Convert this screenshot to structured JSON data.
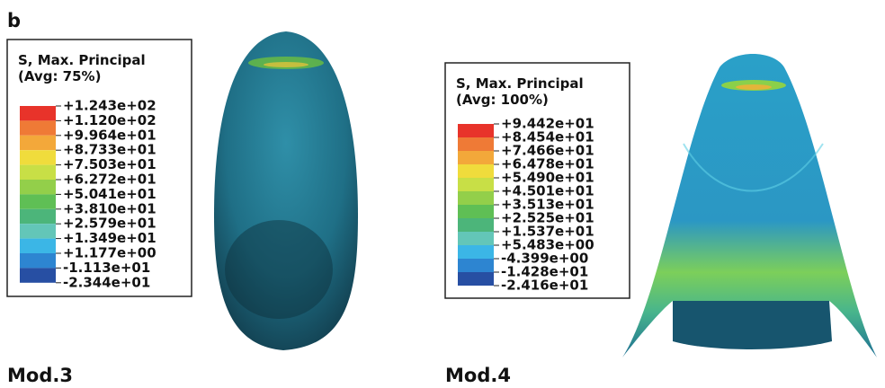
{
  "panel_label": "b",
  "panels": [
    {
      "caption": "Mod.3",
      "legend": {
        "title": [
          "S, Max. Principal",
          "(Avg: 75%)"
        ],
        "labels": [
          "+1.243e+02",
          "+1.120e+02",
          "+9.964e+01",
          "+8.733e+01",
          "+7.503e+01",
          "+6.272e+01",
          "+5.041e+01",
          "+3.810e+01",
          "+2.579e+01",
          "+1.349e+01",
          "+1.177e+00",
          "-1.113e+01",
          "-2.344e+01"
        ],
        "colors": [
          "#e8332a",
          "#ef7a36",
          "#f3a83a",
          "#f0dc3c",
          "#c8df46",
          "#93cf4a",
          "#5fbf55",
          "#4cb57a",
          "#63c6b8",
          "#3bb6e6",
          "#2d85d1",
          "#274fa3"
        ]
      }
    },
    {
      "caption": "Mod.4",
      "legend": {
        "title": [
          "S, Max. Principal",
          "(Avg: 100%)"
        ],
        "labels": [
          "+9.442e+01",
          "+8.454e+01",
          "+7.466e+01",
          "+6.478e+01",
          "+5.490e+01",
          "+4.501e+01",
          "+3.513e+01",
          "+2.525e+01",
          "+1.537e+01",
          "+5.483e+00",
          "-4.399e+00",
          "-1.428e+01",
          "-2.416e+01"
        ],
        "colors": [
          "#e8332a",
          "#ef7a36",
          "#f3a83a",
          "#f0dc3c",
          "#c8df46",
          "#93cf4a",
          "#5fbf55",
          "#4cb57a",
          "#63c6b8",
          "#3bb6e6",
          "#2d85d1",
          "#274fa3"
        ]
      }
    }
  ]
}
